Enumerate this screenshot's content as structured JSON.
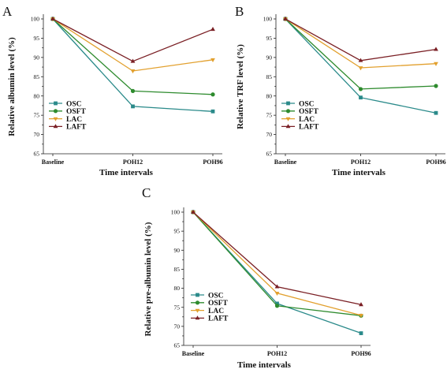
{
  "colors": {
    "OSC": "#2a8a8a",
    "OSFT": "#2e8b2e",
    "LAC": "#e2a02e",
    "LAFT": "#7a1f24"
  },
  "chart_data": [
    {
      "panel": "A",
      "type": "line",
      "categories": [
        "Baseline",
        "POH12",
        "POH96"
      ],
      "xlabel": "Time intervals",
      "ylabel": "Relative albumin level (%)",
      "ylim": [
        65,
        100
      ],
      "yticks": [
        65,
        70,
        75,
        80,
        85,
        90,
        95,
        100
      ],
      "grid": false,
      "legend_position": "left-middle",
      "series": [
        {
          "name": "OSC",
          "marker": "square",
          "values": [
            100,
            77.3,
            76.0
          ]
        },
        {
          "name": "OSFT",
          "marker": "circle",
          "values": [
            100,
            81.3,
            80.4
          ]
        },
        {
          "name": "LAC",
          "marker": "triangle-down",
          "values": [
            100,
            86.5,
            89.4
          ]
        },
        {
          "name": "LAFT",
          "marker": "triangle-up",
          "values": [
            100,
            89.0,
            97.3
          ]
        }
      ]
    },
    {
      "panel": "B",
      "type": "line",
      "categories": [
        "Baseline",
        "POH12",
        "POH96"
      ],
      "xlabel": "Time intervals",
      "ylabel": "Relative TRF level (%)",
      "ylim": [
        65,
        100
      ],
      "yticks": [
        65,
        70,
        75,
        80,
        85,
        90,
        95,
        100
      ],
      "grid": false,
      "legend_position": "left-middle",
      "series": [
        {
          "name": "OSC",
          "marker": "square",
          "values": [
            100,
            79.6,
            75.6
          ]
        },
        {
          "name": "OSFT",
          "marker": "circle",
          "values": [
            100,
            81.8,
            82.6
          ]
        },
        {
          "name": "LAC",
          "marker": "triangle-down",
          "values": [
            100,
            87.3,
            88.4
          ]
        },
        {
          "name": "LAFT",
          "marker": "triangle-up",
          "values": [
            100,
            89.2,
            92.1
          ]
        }
      ]
    },
    {
      "panel": "C",
      "type": "line",
      "categories": [
        "Baseline",
        "POH12",
        "POH96"
      ],
      "xlabel": "Time intervals",
      "ylabel": "Relative pre-albumin level (%)",
      "ylim": [
        65,
        100
      ],
      "yticks": [
        65,
        70,
        75,
        80,
        85,
        90,
        95,
        100
      ],
      "grid": false,
      "legend_position": "left-middle",
      "series": [
        {
          "name": "OSC",
          "marker": "square",
          "values": [
            100,
            76.0,
            68.2
          ]
        },
        {
          "name": "OSFT",
          "marker": "circle",
          "values": [
            100,
            75.4,
            72.8
          ]
        },
        {
          "name": "LAC",
          "marker": "triangle-down",
          "values": [
            100,
            78.7,
            72.9
          ]
        },
        {
          "name": "LAFT",
          "marker": "triangle-up",
          "values": [
            100,
            80.4,
            75.7
          ]
        }
      ]
    }
  ]
}
